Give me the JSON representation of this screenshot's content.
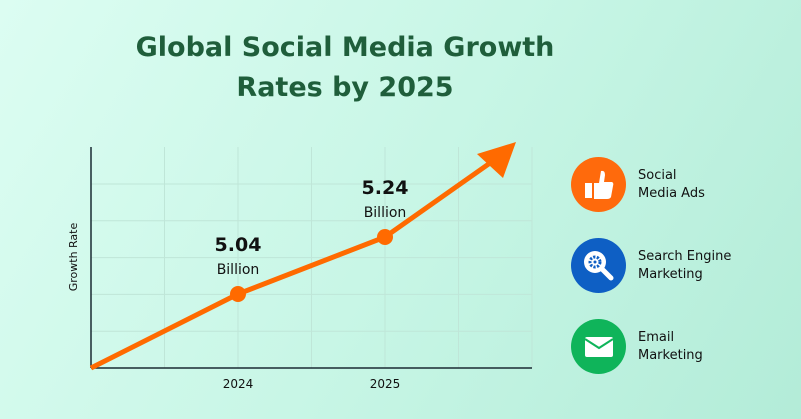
{
  "title_line1": "Global Social Media Growth",
  "title_line2": "Rates by 2025",
  "chart_data": {
    "type": "line",
    "title": "Global Social Media Growth Rates by 2025",
    "ylabel": "Growth Rate",
    "xlabel": "",
    "categories": [
      "2024",
      "2025"
    ],
    "values": [
      5.04,
      5.24
    ],
    "value_unit": "Billion",
    "data_labels": [
      {
        "value": "5.04",
        "unit": "Billion"
      },
      {
        "value": "5.24",
        "unit": "Billion"
      }
    ],
    "grid": true,
    "line_color": "#ff6a00",
    "trend": "upward arrow"
  },
  "legend": [
    {
      "line1": "Social",
      "line2": "Media Ads",
      "icon": "thumbs-up-icon",
      "color": "#ff6a0c"
    },
    {
      "line1": "Search Engine",
      "line2": "Marketing",
      "icon": "search-gear-icon",
      "color": "#0e5fc4"
    },
    {
      "line1": "Email",
      "line2": "Marketing",
      "icon": "envelope-icon",
      "color": "#0fb45a"
    }
  ]
}
